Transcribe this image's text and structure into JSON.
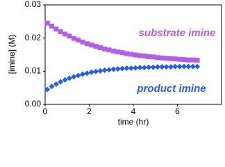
{
  "chart_data": {
    "type": "scatter",
    "xlabel": "time (hr)",
    "ylabel": "[imine] (M)",
    "x": [
      0.1,
      0.3,
      0.5,
      0.7,
      0.9,
      1.1,
      1.3,
      1.5,
      1.7,
      1.9,
      2.1,
      2.3,
      2.5,
      2.7,
      2.9,
      3.1,
      3.3,
      3.5,
      3.7,
      3.9,
      4.1,
      4.3,
      4.5,
      4.7,
      4.9,
      5.1,
      5.3,
      5.5,
      5.7,
      5.9,
      6.1,
      6.3,
      6.5,
      6.7,
      6.9
    ],
    "series": [
      {
        "name": "substrate imine",
        "color": "#b45ee8",
        "marker": "square",
        "values": [
          0.0245,
          0.0236,
          0.0227,
          0.0219,
          0.0212,
          0.0206,
          0.0199,
          0.0194,
          0.0188,
          0.0183,
          0.0179,
          0.0175,
          0.0171,
          0.0167,
          0.0164,
          0.0161,
          0.0158,
          0.0156,
          0.0153,
          0.0151,
          0.0149,
          0.0147,
          0.0146,
          0.0144,
          0.0143,
          0.0141,
          0.014,
          0.0139,
          0.0138,
          0.0137,
          0.0136,
          0.0135,
          0.0134,
          0.0134,
          0.0133
        ]
      },
      {
        "name": "product imine",
        "color": "#1f5fe8",
        "marker": "diamond",
        "values": [
          0.0045,
          0.0054,
          0.0061,
          0.0068,
          0.0074,
          0.0079,
          0.0083,
          0.0087,
          0.0091,
          0.0094,
          0.0097,
          0.0099,
          0.0101,
          0.0103,
          0.0104,
          0.0106,
          0.0107,
          0.0108,
          0.0109,
          0.0109,
          0.011,
          0.0111,
          0.0111,
          0.0112,
          0.0112,
          0.0113,
          0.0113,
          0.0113,
          0.0113,
          0.0114,
          0.0114,
          0.0114,
          0.0114,
          0.0114,
          0.0114
        ]
      }
    ],
    "xlim": [
      0,
      8
    ],
    "xticks": [
      0,
      2,
      4,
      6
    ],
    "ylim": [
      0,
      0.03
    ],
    "yticks": [
      {
        "value": 0,
        "label": "0.00"
      },
      0.01,
      0.02,
      0.03
    ],
    "grid": false
  }
}
